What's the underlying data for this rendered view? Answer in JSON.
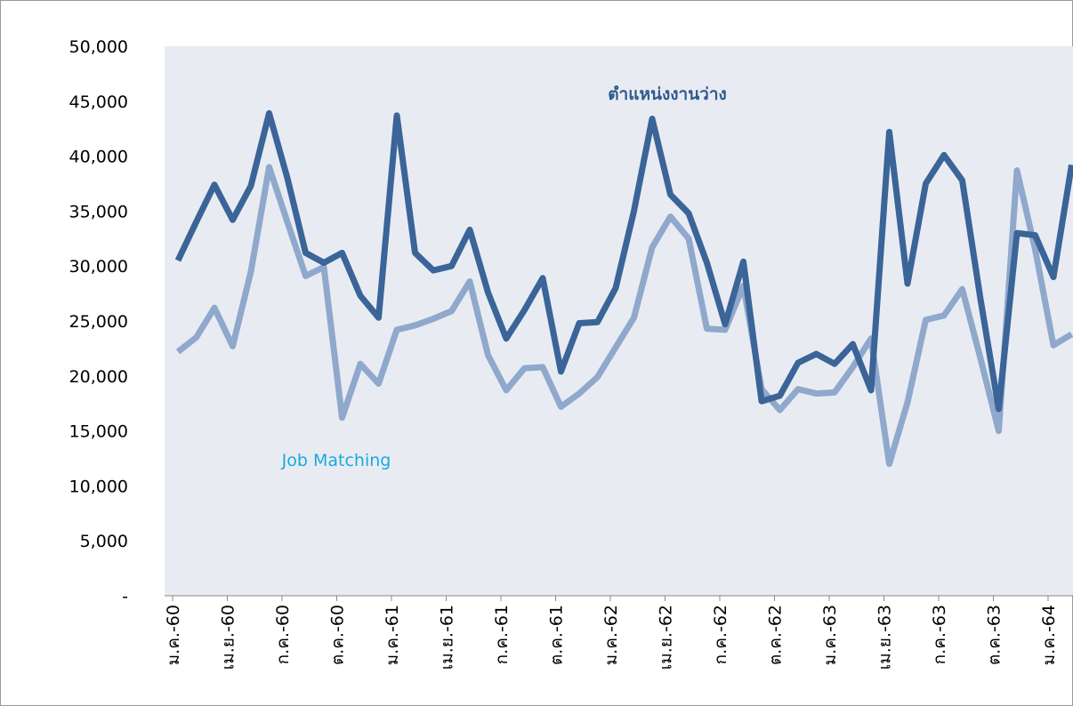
{
  "chart_data": {
    "type": "line",
    "categories": [
      "ม.ค.-60",
      null,
      null,
      "เม.ย.-60",
      null,
      null,
      "ก.ค.-60",
      null,
      null,
      "ต.ค.-60",
      null,
      null,
      "ม.ค.-61",
      null,
      null,
      "เม.ย.-61",
      null,
      null,
      "ก.ค.-61",
      null,
      null,
      "ต.ค.-61",
      null,
      null,
      "ม.ค.-62",
      null,
      null,
      "เม.ย.-62",
      null,
      null,
      "ก.ค.-62",
      null,
      null,
      "ต.ค.-62",
      null,
      null,
      "ม.ค.-63",
      null,
      null,
      "เม.ย.-63",
      null,
      null,
      "ก.ค.-63",
      null,
      null,
      "ต.ค.-63",
      null,
      null,
      "ม.ค.-64",
      null
    ],
    "series": [
      {
        "name": "ตำแหน่งงานว่าง",
        "color": "#3b6498",
        "label_color": "#2f5a8e",
        "values": [
          30500,
          34000,
          37400,
          34200,
          37300,
          43900,
          38000,
          31200,
          30300,
          31200,
          27300,
          25300,
          43700,
          31200,
          29600,
          30000,
          33300,
          27600,
          23400,
          26000,
          28900,
          20400,
          24800,
          24900,
          28000,
          35000,
          43400,
          36500,
          34800,
          30300,
          24700,
          30400,
          17700,
          18200,
          21200,
          22000,
          21100,
          22900,
          18700,
          42200,
          28400,
          37500,
          40100,
          37800,
          27000,
          17000,
          33000,
          32800,
          29000,
          39200
        ]
      },
      {
        "name": "Job Matching",
        "color": "#8fa8cc",
        "label_color": "#1aa9df",
        "values": [
          22200,
          23500,
          26200,
          22700,
          29500,
          39000,
          34000,
          29100,
          29900,
          16200,
          21100,
          19300,
          24200,
          24600,
          25200,
          25900,
          28600,
          21900,
          18700,
          20700,
          20800,
          17200,
          18400,
          19900,
          22600,
          25300,
          31700,
          34500,
          32500,
          24300,
          24200,
          28200,
          18800,
          16900,
          18800,
          18400,
          18500,
          20800,
          23400,
          12000,
          17600,
          25100,
          25500,
          27900,
          21600,
          15000,
          38700,
          31500,
          22800,
          23800
        ]
      }
    ],
    "ylim": [
      0,
      50000
    ],
    "yticks": [
      {
        "value": 0,
        "label": "-"
      },
      {
        "value": 5000,
        "label": "5,000"
      },
      {
        "value": 10000,
        "label": "10,000"
      },
      {
        "value": 15000,
        "label": "15,000"
      },
      {
        "value": 20000,
        "label": "20,000"
      },
      {
        "value": 25000,
        "label": "25,000"
      },
      {
        "value": 30000,
        "label": "30,000"
      },
      {
        "value": 35000,
        "label": "35,000"
      },
      {
        "value": 40000,
        "label": "40,000"
      },
      {
        "value": 45000,
        "label": "45,000"
      },
      {
        "value": 50000,
        "label": "50,000"
      }
    ],
    "grid": false
  }
}
